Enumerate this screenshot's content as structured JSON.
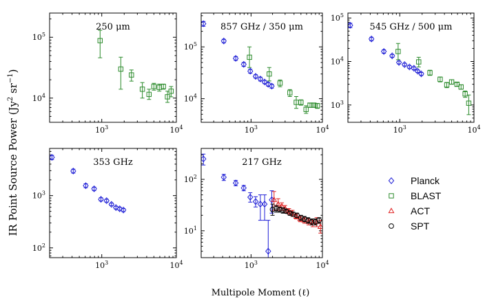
{
  "figure": {
    "ylabel_main": "IR Point Source Power (Jy",
    "ylabel_sup1": "2",
    "ylabel_mid": " sr",
    "ylabel_sup2": "−1",
    "ylabel_end": ")",
    "xlabel": "Multipole Moment (ℓ)"
  },
  "colors": {
    "Planck": "#1f1fd6",
    "BLAST": "#2a8a2a",
    "ACT": "#e02020",
    "SPT": "#000000"
  },
  "legend": [
    {
      "label": "Planck",
      "marker": "diamond"
    },
    {
      "label": "BLAST",
      "marker": "square"
    },
    {
      "label": "ACT",
      "marker": "triangle"
    },
    {
      "label": "SPT",
      "marker": "circle"
    }
  ],
  "chart_data": [
    {
      "type": "scatter",
      "title": "250 μm",
      "xscale": "log",
      "yscale": "log",
      "xlim": [
        200,
        10000
      ],
      "ylim": [
        4000,
        250000
      ],
      "xticks": [
        {
          "base": "10",
          "exp": "3",
          "value": 1000
        },
        {
          "base": "10",
          "exp": "4",
          "value": 10000
        }
      ],
      "yticks": [
        {
          "base": "10",
          "exp": "4",
          "value": 10000
        },
        {
          "base": "10",
          "exp": "5",
          "value": 100000
        }
      ],
      "series": [
        {
          "name": "BLAST",
          "points": [
            {
              "x": 950,
              "y": 88000,
              "lo": 46000,
              "hi": 130000
            },
            {
              "x": 1800,
              "y": 30000,
              "lo": 14000,
              "hi": 47000
            },
            {
              "x": 2500,
              "y": 24000,
              "lo": 19000,
              "hi": 29000
            },
            {
              "x": 3500,
              "y": 14000,
              "lo": 10000,
              "hi": 18000
            },
            {
              "x": 4300,
              "y": 11500,
              "lo": 9500,
              "hi": 14000
            },
            {
              "x": 5000,
              "y": 15500,
              "lo": 13500,
              "hi": 17500
            },
            {
              "x": 5900,
              "y": 15000,
              "lo": 13000,
              "hi": 17000
            },
            {
              "x": 6700,
              "y": 15500,
              "lo": 14000,
              "hi": 17000
            },
            {
              "x": 7600,
              "y": 10500,
              "lo": 8500,
              "hi": 13000
            },
            {
              "x": 8500,
              "y": 13000,
              "lo": 10500,
              "hi": 15500
            }
          ]
        }
      ]
    },
    {
      "type": "scatter",
      "title": "857 GHz / 350 μm",
      "xscale": "log",
      "yscale": "log",
      "xlim": [
        200,
        10000
      ],
      "ylim": [
        3500,
        450000
      ],
      "xticks": [
        {
          "base": "10",
          "exp": "3",
          "value": 1000
        },
        {
          "base": "10",
          "exp": "4",
          "value": 10000
        }
      ],
      "yticks": [
        {
          "base": "10",
          "exp": "4",
          "value": 10000
        },
        {
          "base": "10",
          "exp": "5",
          "value": 100000
        }
      ],
      "series": [
        {
          "name": "Planck",
          "points": [
            {
              "x": 215,
              "y": 280000,
              "lo": 250000,
              "hi": 310000
            },
            {
              "x": 415,
              "y": 130000,
              "lo": 120000,
              "hi": 140000
            },
            {
              "x": 610,
              "y": 60000,
              "lo": 55000,
              "hi": 65000
            },
            {
              "x": 790,
              "y": 46000,
              "lo": 42000,
              "hi": 50000
            },
            {
              "x": 975,
              "y": 34000,
              "lo": 31000,
              "hi": 37000
            },
            {
              "x": 1160,
              "y": 27000,
              "lo": 25000,
              "hi": 29000
            },
            {
              "x": 1350,
              "y": 24000,
              "lo": 22000,
              "hi": 26000
            },
            {
              "x": 1550,
              "y": 21000,
              "lo": 19500,
              "hi": 22500
            },
            {
              "x": 1740,
              "y": 19000,
              "lo": 17500,
              "hi": 20500
            },
            {
              "x": 1950,
              "y": 17500,
              "lo": 16000,
              "hi": 19000
            }
          ]
        },
        {
          "name": "BLAST",
          "points": [
            {
              "x": 950,
              "y": 63000,
              "lo": 40000,
              "hi": 100000
            },
            {
              "x": 1800,
              "y": 30000,
              "lo": 22000,
              "hi": 40000
            },
            {
              "x": 2550,
              "y": 20000,
              "lo": 17000,
              "hi": 23000
            },
            {
              "x": 3500,
              "y": 13000,
              "lo": 11000,
              "hi": 15000
            },
            {
              "x": 4300,
              "y": 8500,
              "lo": 6500,
              "hi": 11000
            },
            {
              "x": 5000,
              "y": 8500,
              "lo": 7500,
              "hi": 9500
            },
            {
              "x": 5900,
              "y": 6200,
              "lo": 5200,
              "hi": 7300
            },
            {
              "x": 6700,
              "y": 7500,
              "lo": 6800,
              "hi": 8200
            },
            {
              "x": 7600,
              "y": 7500,
              "lo": 6800,
              "hi": 8200
            },
            {
              "x": 8500,
              "y": 7300,
              "lo": 6500,
              "hi": 8100
            }
          ]
        }
      ]
    },
    {
      "type": "scatter",
      "title": "545 GHz / 500 μm",
      "xscale": "log",
      "yscale": "log",
      "xlim": [
        200,
        10000
      ],
      "ylim": [
        400,
        130000
      ],
      "xticks": [
        {
          "base": "10",
          "exp": "3",
          "value": 1000
        },
        {
          "base": "10",
          "exp": "4",
          "value": 10000
        }
      ],
      "yticks": [
        {
          "base": "10",
          "exp": "3",
          "value": 1000
        },
        {
          "base": "10",
          "exp": "4",
          "value": 10000
        },
        {
          "base": "10",
          "exp": "5",
          "value": 100000
        }
      ],
      "series": [
        {
          "name": "Planck",
          "points": [
            {
              "x": 215,
              "y": 68000,
              "lo": 60000,
              "hi": 76000
            },
            {
              "x": 415,
              "y": 33000,
              "lo": 30000,
              "hi": 36000
            },
            {
              "x": 610,
              "y": 17000,
              "lo": 15500,
              "hi": 18500
            },
            {
              "x": 790,
              "y": 13500,
              "lo": 12500,
              "hi": 14500
            },
            {
              "x": 975,
              "y": 9500,
              "lo": 8800,
              "hi": 10200
            },
            {
              "x": 1160,
              "y": 8500,
              "lo": 7900,
              "hi": 9100
            },
            {
              "x": 1350,
              "y": 7500,
              "lo": 7000,
              "hi": 8000
            },
            {
              "x": 1550,
              "y": 7000,
              "lo": 6500,
              "hi": 7500
            },
            {
              "x": 1740,
              "y": 6000,
              "lo": 5600,
              "hi": 6400
            },
            {
              "x": 1950,
              "y": 5200,
              "lo": 4800,
              "hi": 5600
            }
          ]
        },
        {
          "name": "BLAST",
          "points": [
            {
              "x": 950,
              "y": 17000,
              "lo": 11000,
              "hi": 26000
            },
            {
              "x": 1800,
              "y": 9800,
              "lo": 7500,
              "hi": 12500
            },
            {
              "x": 2550,
              "y": 5500,
              "lo": 4800,
              "hi": 6300
            },
            {
              "x": 3500,
              "y": 3900,
              "lo": 3400,
              "hi": 4400
            },
            {
              "x": 4300,
              "y": 2900,
              "lo": 2500,
              "hi": 3300
            },
            {
              "x": 5000,
              "y": 3400,
              "lo": 3000,
              "hi": 3800
            },
            {
              "x": 5900,
              "y": 3000,
              "lo": 2700,
              "hi": 3300
            },
            {
              "x": 6700,
              "y": 2600,
              "lo": 2300,
              "hi": 2900
            },
            {
              "x": 7600,
              "y": 1800,
              "lo": 1500,
              "hi": 2100
            },
            {
              "x": 8500,
              "y": 1100,
              "lo": 600,
              "hi": 1700
            }
          ]
        }
      ]
    },
    {
      "type": "scatter",
      "title": "353 GHz",
      "xscale": "log",
      "yscale": "log",
      "xlim": [
        200,
        10000
      ],
      "ylim": [
        65,
        8000
      ],
      "xticks": [
        {
          "base": "10",
          "exp": "3",
          "value": 1000
        },
        {
          "base": "10",
          "exp": "4",
          "value": 10000
        }
      ],
      "yticks": [
        {
          "base": "10",
          "exp": "2",
          "value": 100
        },
        {
          "base": "10",
          "exp": "3",
          "value": 1000
        }
      ],
      "series": [
        {
          "name": "Planck",
          "points": [
            {
              "x": 215,
              "y": 5400,
              "lo": 4900,
              "hi": 5900
            },
            {
              "x": 415,
              "y": 2950,
              "lo": 2700,
              "hi": 3200
            },
            {
              "x": 610,
              "y": 1550,
              "lo": 1420,
              "hi": 1680
            },
            {
              "x": 790,
              "y": 1350,
              "lo": 1250,
              "hi": 1450
            },
            {
              "x": 975,
              "y": 850,
              "lo": 790,
              "hi": 910
            },
            {
              "x": 1160,
              "y": 800,
              "lo": 750,
              "hi": 850
            },
            {
              "x": 1350,
              "y": 680,
              "lo": 640,
              "hi": 720
            },
            {
              "x": 1550,
              "y": 590,
              "lo": 555,
              "hi": 625
            },
            {
              "x": 1740,
              "y": 560,
              "lo": 525,
              "hi": 595
            },
            {
              "x": 1950,
              "y": 530,
              "lo": 495,
              "hi": 565
            }
          ]
        }
      ]
    },
    {
      "type": "scatter",
      "title": "217 GHz",
      "xscale": "log",
      "yscale": "log",
      "xlim": [
        200,
        10000
      ],
      "ylim": [
        3,
        400
      ],
      "xticks": [
        {
          "base": "10",
          "exp": "3",
          "value": 1000
        },
        {
          "base": "10",
          "exp": "4",
          "value": 10000
        }
      ],
      "yticks": [
        {
          "base": "10",
          "exp": "1",
          "value": 10
        },
        {
          "base": "10",
          "exp": "2",
          "value": 100
        }
      ],
      "series": [
        {
          "name": "Planck",
          "points": [
            {
              "x": 215,
              "y": 250,
              "lo": 190,
              "hi": 310
            },
            {
              "x": 415,
              "y": 110,
              "lo": 95,
              "hi": 125
            },
            {
              "x": 610,
              "y": 85,
              "lo": 75,
              "hi": 95
            },
            {
              "x": 790,
              "y": 68,
              "lo": 60,
              "hi": 76
            },
            {
              "x": 975,
              "y": 45,
              "lo": 36,
              "hi": 55
            },
            {
              "x": 1160,
              "y": 37,
              "lo": 29,
              "hi": 46
            },
            {
              "x": 1350,
              "y": 33,
              "lo": 16,
              "hi": 50
            },
            {
              "x": 1550,
              "y": 33,
              "lo": 16,
              "hi": 50
            },
            {
              "x": 1740,
              "y": 4,
              "lo": 3,
              "hi": 16
            },
            {
              "x": 1950,
              "y": 40,
              "lo": 22,
              "hi": 60
            }
          ]
        },
        {
          "name": "ACT",
          "points": [
            {
              "x": 2100,
              "y": 40,
              "lo": 25,
              "hi": 58
            },
            {
              "x": 2400,
              "y": 33,
              "lo": 25,
              "hi": 42
            },
            {
              "x": 2700,
              "y": 30,
              "lo": 25,
              "hi": 35
            },
            {
              "x": 3000,
              "y": 27,
              "lo": 23,
              "hi": 31
            },
            {
              "x": 3400,
              "y": 24,
              "lo": 21,
              "hi": 27
            },
            {
              "x": 3800,
              "y": 22,
              "lo": 19,
              "hi": 25
            },
            {
              "x": 4300,
              "y": 19,
              "lo": 17,
              "hi": 21
            },
            {
              "x": 4900,
              "y": 17,
              "lo": 15,
              "hi": 19
            },
            {
              "x": 5600,
              "y": 16,
              "lo": 14,
              "hi": 18
            },
            {
              "x": 6400,
              "y": 15,
              "lo": 13,
              "hi": 17
            },
            {
              "x": 7300,
              "y": 14,
              "lo": 12,
              "hi": 16
            },
            {
              "x": 8300,
              "y": 15,
              "lo": 12,
              "hi": 18
            },
            {
              "x": 9400,
              "y": 12,
              "lo": 9,
              "hi": 16
            }
          ]
        },
        {
          "name": "SPT",
          "points": [
            {
              "x": 2000,
              "y": 26,
              "lo": 20,
              "hi": 33
            },
            {
              "x": 2250,
              "y": 27,
              "lo": 23,
              "hi": 31
            },
            {
              "x": 2500,
              "y": 26,
              "lo": 23,
              "hi": 29
            },
            {
              "x": 2800,
              "y": 25,
              "lo": 22,
              "hi": 28
            },
            {
              "x": 3100,
              "y": 24,
              "lo": 22,
              "hi": 26
            },
            {
              "x": 3500,
              "y": 22,
              "lo": 20,
              "hi": 24
            },
            {
              "x": 3900,
              "y": 21,
              "lo": 19,
              "hi": 23
            },
            {
              "x": 4400,
              "y": 20,
              "lo": 18,
              "hi": 22
            },
            {
              "x": 5000,
              "y": 18,
              "lo": 16,
              "hi": 20
            },
            {
              "x": 5600,
              "y": 17,
              "lo": 15,
              "hi": 19
            },
            {
              "x": 6300,
              "y": 16,
              "lo": 14,
              "hi": 18
            },
            {
              "x": 7100,
              "y": 15,
              "lo": 13,
              "hi": 17
            },
            {
              "x": 8000,
              "y": 15,
              "lo": 13,
              "hi": 17
            },
            {
              "x": 9000,
              "y": 16,
              "lo": 14,
              "hi": 18
            }
          ]
        }
      ]
    }
  ]
}
